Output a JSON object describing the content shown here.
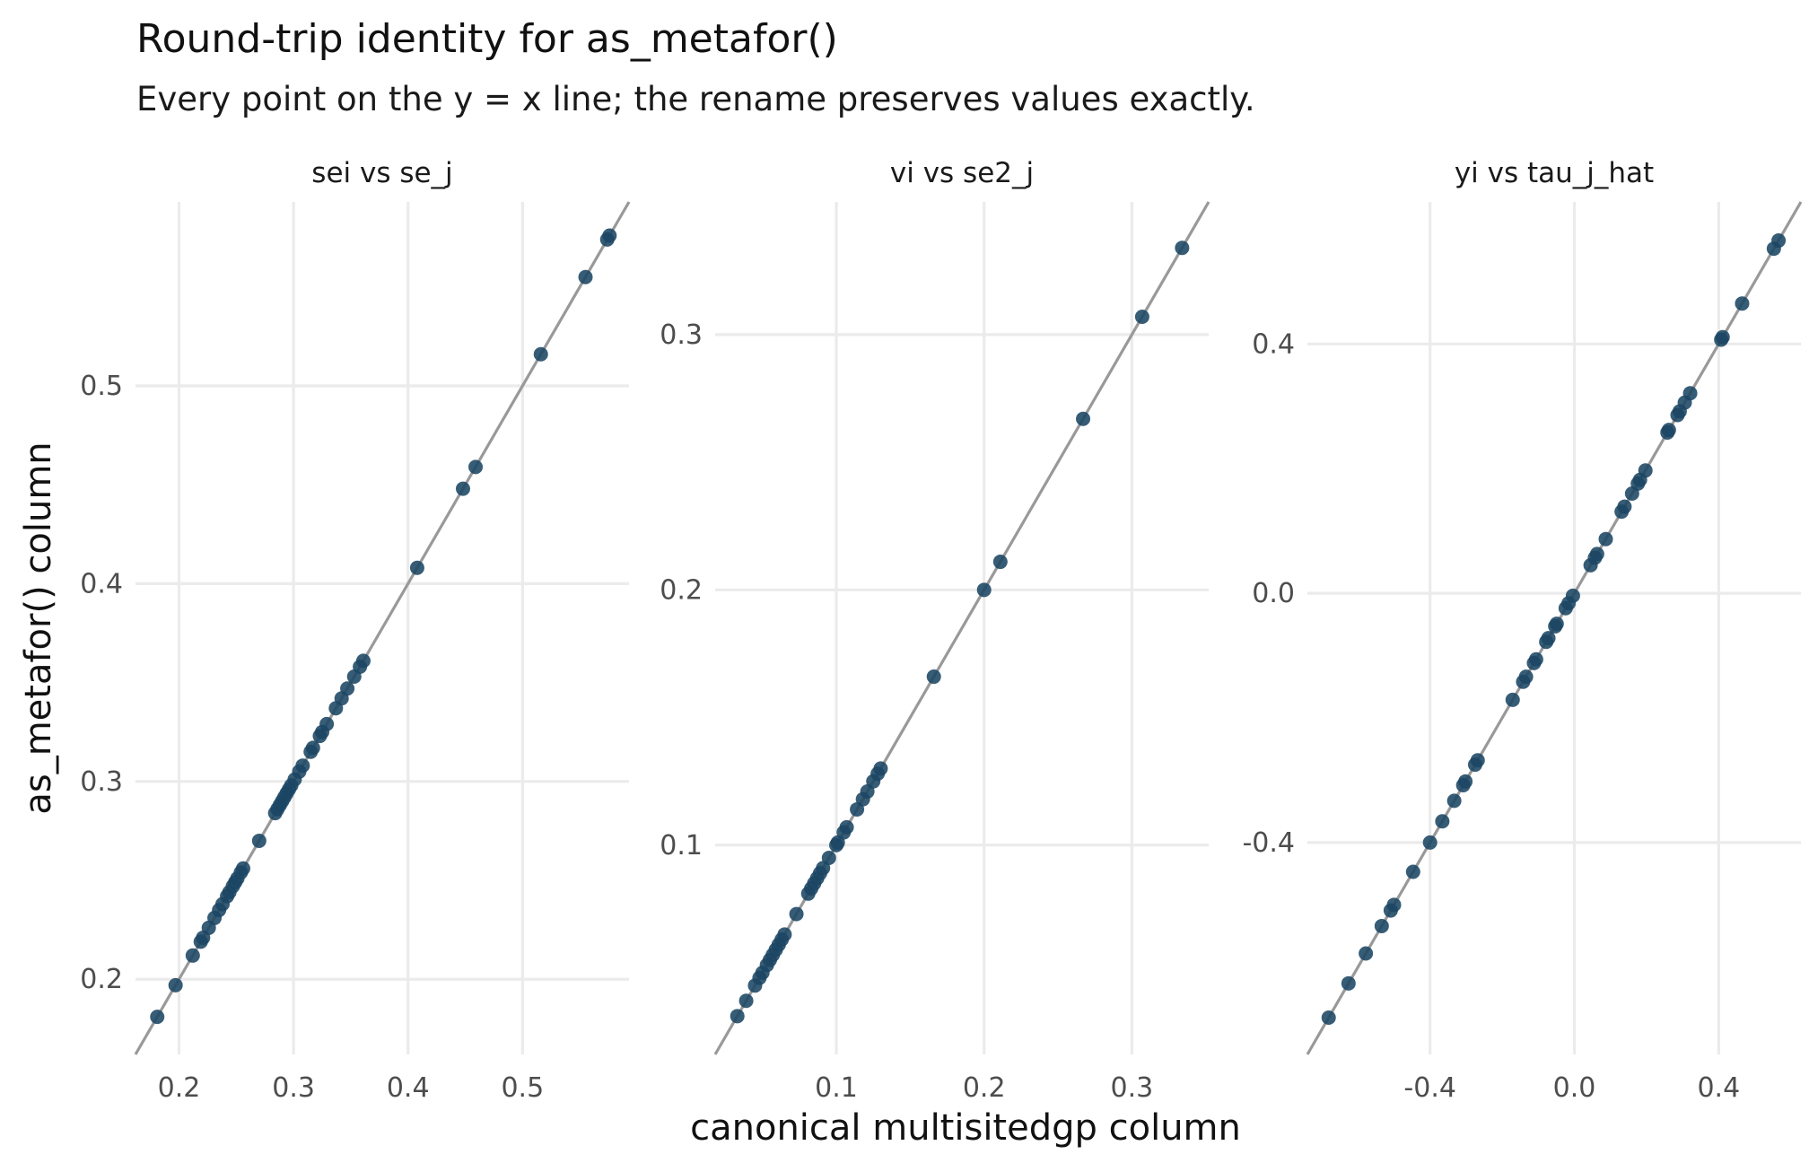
{
  "chart_data": {
    "type": "scatter",
    "title": "Round-trip identity for as_metafor()",
    "subtitle": "Every point on the y = x line; the rename preserves values exactly.",
    "xlabel": "canonical multisitedgp column",
    "ylabel": "as_metafor() column",
    "reference_line": "y = x",
    "point_color": "#1b4563",
    "line_color": "#999999",
    "grid": true,
    "panels": [
      {
        "strip": "sei vs se_j",
        "xlim": [
          0.162,
          0.593
        ],
        "ylim": [
          0.162,
          0.593
        ],
        "xticks": [
          0.2,
          0.3,
          0.4,
          0.5
        ],
        "yticks": [
          0.2,
          0.3,
          0.4,
          0.5
        ],
        "tick_labels": [
          "0.2",
          "0.3",
          "0.4",
          "0.5"
        ],
        "x": [
          0.181,
          0.197,
          0.212,
          0.219,
          0.221,
          0.226,
          0.231,
          0.235,
          0.238,
          0.242,
          0.244,
          0.247,
          0.249,
          0.251,
          0.254,
          0.256,
          0.27,
          0.284,
          0.286,
          0.288,
          0.29,
          0.292,
          0.294,
          0.296,
          0.298,
          0.301,
          0.305,
          0.308,
          0.315,
          0.317,
          0.323,
          0.325,
          0.329,
          0.337,
          0.342,
          0.347,
          0.353,
          0.358,
          0.361,
          0.408,
          0.448,
          0.459,
          0.516,
          0.555,
          0.574,
          0.576
        ],
        "y": [
          0.181,
          0.197,
          0.212,
          0.219,
          0.221,
          0.226,
          0.231,
          0.235,
          0.238,
          0.242,
          0.244,
          0.247,
          0.249,
          0.251,
          0.254,
          0.256,
          0.27,
          0.284,
          0.286,
          0.288,
          0.29,
          0.292,
          0.294,
          0.296,
          0.298,
          0.301,
          0.305,
          0.308,
          0.315,
          0.317,
          0.323,
          0.325,
          0.329,
          0.337,
          0.342,
          0.347,
          0.353,
          0.358,
          0.361,
          0.408,
          0.448,
          0.459,
          0.516,
          0.555,
          0.574,
          0.576
        ]
      },
      {
        "strip": "vi vs se2_j",
        "xlim": [
          0.018,
          0.352
        ],
        "ylim": [
          0.018,
          0.352
        ],
        "xticks": [
          0.1,
          0.2,
          0.3
        ],
        "yticks": [
          0.1,
          0.2,
          0.3
        ],
        "tick_labels": [
          "0.1",
          "0.2",
          "0.3"
        ],
        "x": [
          0.033,
          0.039,
          0.045,
          0.048,
          0.05,
          0.053,
          0.055,
          0.057,
          0.059,
          0.061,
          0.063,
          0.065,
          0.073,
          0.081,
          0.083,
          0.085,
          0.087,
          0.089,
          0.091,
          0.095,
          0.1,
          0.101,
          0.105,
          0.107,
          0.114,
          0.118,
          0.121,
          0.125,
          0.128,
          0.13,
          0.166,
          0.2,
          0.211,
          0.267,
          0.307,
          0.334
        ],
        "y": [
          0.033,
          0.039,
          0.045,
          0.048,
          0.05,
          0.053,
          0.055,
          0.057,
          0.059,
          0.061,
          0.063,
          0.065,
          0.073,
          0.081,
          0.083,
          0.085,
          0.087,
          0.089,
          0.091,
          0.095,
          0.1,
          0.101,
          0.105,
          0.107,
          0.114,
          0.118,
          0.121,
          0.125,
          0.128,
          0.13,
          0.166,
          0.2,
          0.211,
          0.267,
          0.307,
          0.334
        ]
      },
      {
        "strip": "yi vs tau_j_hat",
        "xlim": [
          -0.74,
          0.628
        ],
        "ylim": [
          -0.74,
          0.628
        ],
        "xticks": [
          -0.4,
          0.0,
          0.4
        ],
        "yticks": [
          -0.4,
          0.0,
          0.4
        ],
        "tick_labels": [
          "-0.4",
          "0.0",
          "0.4"
        ],
        "x": [
          -0.681,
          -0.626,
          -0.578,
          -0.534,
          -0.509,
          -0.5,
          -0.447,
          -0.4,
          -0.366,
          -0.333,
          -0.308,
          -0.302,
          -0.275,
          -0.268,
          -0.171,
          -0.142,
          -0.134,
          -0.112,
          -0.106,
          -0.078,
          -0.072,
          -0.053,
          -0.049,
          -0.024,
          -0.016,
          -0.004,
          0.045,
          0.057,
          0.063,
          0.087,
          0.131,
          0.139,
          0.16,
          0.176,
          0.182,
          0.197,
          0.258,
          0.262,
          0.286,
          0.292,
          0.306,
          0.321,
          0.407,
          0.411,
          0.465,
          0.553,
          0.566
        ],
        "y": [
          -0.681,
          -0.626,
          -0.578,
          -0.534,
          -0.509,
          -0.5,
          -0.447,
          -0.4,
          -0.366,
          -0.333,
          -0.308,
          -0.302,
          -0.275,
          -0.268,
          -0.171,
          -0.142,
          -0.134,
          -0.112,
          -0.106,
          -0.078,
          -0.072,
          -0.053,
          -0.049,
          -0.024,
          -0.016,
          -0.004,
          0.045,
          0.057,
          0.063,
          0.087,
          0.131,
          0.139,
          0.16,
          0.176,
          0.182,
          0.197,
          0.258,
          0.262,
          0.286,
          0.292,
          0.306,
          0.321,
          0.407,
          0.411,
          0.465,
          0.553,
          0.566
        ]
      }
    ]
  }
}
